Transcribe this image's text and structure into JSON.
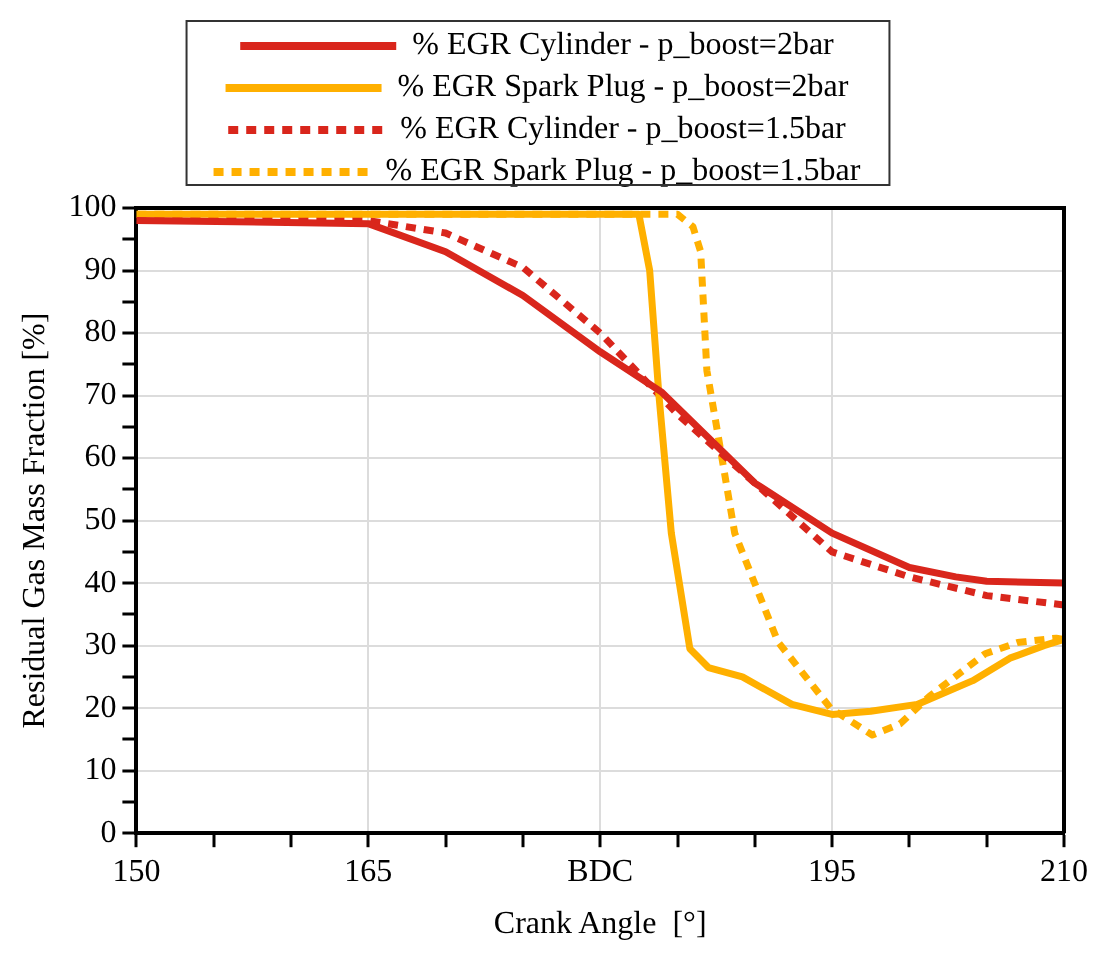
{
  "chart_data": {
    "type": "line",
    "xlabel": "Crank Angle  [°]",
    "ylabel": "Residual Gas Mass Fraction [%]",
    "xlim": [
      150,
      210
    ],
    "xticks": [
      150,
      {
        "value": 155,
        "label": null
      },
      {
        "value": 160,
        "label": null
      },
      165,
      {
        "value": 170,
        "label": null
      },
      {
        "value": 175,
        "label": null
      },
      {
        "value": 180,
        "label": "BDC"
      },
      {
        "value": 185,
        "label": null
      },
      {
        "value": 190,
        "label": null
      },
      195,
      {
        "value": 200,
        "label": null
      },
      {
        "value": 205,
        "label": null
      },
      210
    ],
    "ylim": [
      0,
      100
    ],
    "yticks": [
      0,
      {
        "value": 5,
        "label": null
      },
      10,
      {
        "value": 15,
        "label": null
      },
      20,
      {
        "value": 25,
        "label": null
      },
      30,
      {
        "value": 35,
        "label": null
      },
      40,
      {
        "value": 45,
        "label": null
      },
      50,
      {
        "value": 55,
        "label": null
      },
      60,
      {
        "value": 65,
        "label": null
      },
      70,
      {
        "value": 75,
        "label": null
      },
      80,
      {
        "value": 85,
        "label": null
      },
      90,
      {
        "value": 95,
        "label": null
      },
      100
    ],
    "grid": true,
    "legend": "top",
    "marker": "none",
    "series": [
      {
        "name": "% EGR Cylinder - p_boost=2bar",
        "color": "#d9261c",
        "line_style": "solid",
        "x": [
          150,
          165,
          170,
          175,
          180,
          184,
          190,
          195,
          200,
          203,
          205,
          210
        ],
        "values": [
          98,
          97.5,
          93,
          86,
          77,
          70.5,
          56,
          48,
          42.5,
          41,
          40.3,
          40
        ]
      },
      {
        "name": "% EGR Spark Plug - p_boost=2bar",
        "color": "#ffb000",
        "line_style": "solid",
        "x": [
          150,
          182.5,
          183.2,
          183.8,
          184.6,
          185.8,
          187,
          189.2,
          192.4,
          195,
          197.5,
          200.5,
          204.1,
          206.5,
          208.7,
          210
        ],
        "values": [
          99,
          99,
          90,
          70,
          48,
          29.5,
          26.5,
          25,
          20.6,
          19,
          19.5,
          20.6,
          24.4,
          28,
          30,
          31
        ]
      },
      {
        "name": "% EGR Cylinder - p_boost=1.5bar",
        "color": "#d9261c",
        "line_style": "dashed",
        "x": [
          150,
          165,
          170,
          175,
          180,
          185,
          190,
          195,
          200,
          205,
          210
        ],
        "values": [
          98,
          98,
          96,
          90.5,
          80,
          67,
          56,
          45,
          41,
          38,
          36.5
        ]
      },
      {
        "name": "% EGR Spark Plug - p_boost=1.5bar",
        "color": "#ffb000",
        "line_style": "dashed",
        "x": [
          150,
          185,
          186,
          186.5,
          186.9,
          187.6,
          188.7,
          191.5,
          194.9,
          197.6,
          199.4,
          201.3,
          204.9,
          207,
          209.5,
          210
        ],
        "values": [
          99,
          99,
          97,
          93,
          74,
          64,
          48,
          30.6,
          20,
          15.7,
          17.5,
          21.9,
          28.7,
          30.5,
          31.2,
          31
        ]
      }
    ]
  }
}
